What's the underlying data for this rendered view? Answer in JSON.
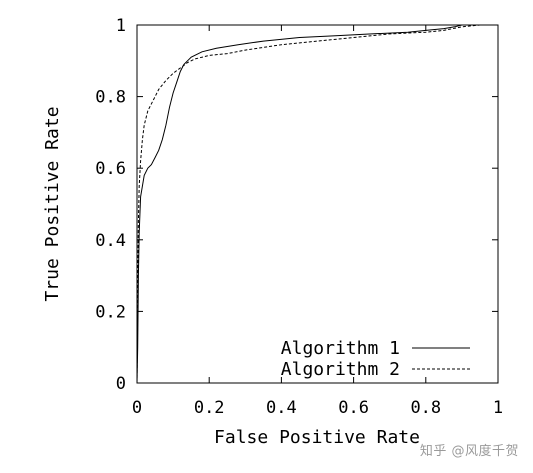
{
  "chart_data": {
    "type": "line",
    "xlabel": "False Positive Rate",
    "ylabel": "True Positive Rate",
    "xlim": [
      0,
      1
    ],
    "ylim": [
      0,
      1
    ],
    "x_ticks": [
      "0",
      "0.2",
      "0.4",
      "0.6",
      "0.8",
      "1"
    ],
    "y_ticks": [
      "0",
      "0.2",
      "0.4",
      "0.6",
      "0.8",
      "1"
    ],
    "grid": false,
    "legend_position": "bottom-right",
    "series": [
      {
        "name": "Algorithm 1",
        "style": "solid",
        "color": "#000000",
        "points": [
          [
            0,
            0
          ],
          [
            0.002,
            0.1
          ],
          [
            0.004,
            0.3
          ],
          [
            0.006,
            0.42
          ],
          [
            0.01,
            0.52
          ],
          [
            0.02,
            0.58
          ],
          [
            0.03,
            0.6
          ],
          [
            0.04,
            0.61
          ],
          [
            0.05,
            0.63
          ],
          [
            0.06,
            0.65
          ],
          [
            0.07,
            0.68
          ],
          [
            0.08,
            0.72
          ],
          [
            0.09,
            0.77
          ],
          [
            0.1,
            0.81
          ],
          [
            0.11,
            0.84
          ],
          [
            0.12,
            0.87
          ],
          [
            0.13,
            0.89
          ],
          [
            0.14,
            0.9
          ],
          [
            0.15,
            0.91
          ],
          [
            0.18,
            0.925
          ],
          [
            0.22,
            0.935
          ],
          [
            0.28,
            0.945
          ],
          [
            0.35,
            0.955
          ],
          [
            0.45,
            0.965
          ],
          [
            0.55,
            0.97
          ],
          [
            0.65,
            0.975
          ],
          [
            0.75,
            0.98
          ],
          [
            0.8,
            0.985
          ],
          [
            0.85,
            0.99
          ],
          [
            0.88,
            0.995
          ],
          [
            0.9,
            1.0
          ],
          [
            1.0,
            1.0
          ]
        ]
      },
      {
        "name": "Algorithm 2",
        "style": "dashed",
        "color": "#000000",
        "points": [
          [
            0,
            0
          ],
          [
            0.002,
            0.25
          ],
          [
            0.004,
            0.45
          ],
          [
            0.006,
            0.55
          ],
          [
            0.01,
            0.62
          ],
          [
            0.015,
            0.68
          ],
          [
            0.02,
            0.72
          ],
          [
            0.03,
            0.76
          ],
          [
            0.04,
            0.78
          ],
          [
            0.05,
            0.8
          ],
          [
            0.06,
            0.82
          ],
          [
            0.08,
            0.845
          ],
          [
            0.1,
            0.865
          ],
          [
            0.12,
            0.88
          ],
          [
            0.14,
            0.895
          ],
          [
            0.16,
            0.905
          ],
          [
            0.2,
            0.915
          ],
          [
            0.25,
            0.92
          ],
          [
            0.3,
            0.93
          ],
          [
            0.4,
            0.945
          ],
          [
            0.5,
            0.955
          ],
          [
            0.6,
            0.965
          ],
          [
            0.7,
            0.975
          ],
          [
            0.8,
            0.98
          ],
          [
            0.85,
            0.985
          ],
          [
            0.9,
            0.995
          ],
          [
            0.95,
            1.0
          ],
          [
            1.0,
            1.0
          ]
        ]
      }
    ]
  },
  "watermark_text": "知乎 @风度千贺"
}
